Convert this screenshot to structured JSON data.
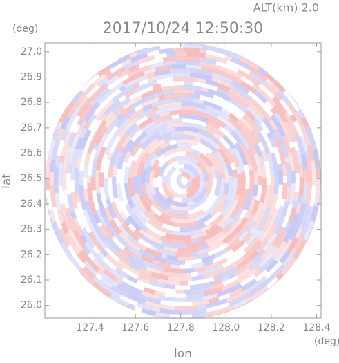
{
  "chart_data": {
    "type": "radar-scan",
    "title": "2017/10/24 12:50:30",
    "subtitle": "ALT(km) 2.0",
    "x_label": "lon",
    "y_label": "lat",
    "x_unit": "(deg)",
    "y_unit": "(deg)",
    "xlim": [
      127.2,
      128.42
    ],
    "ylim": [
      25.95,
      27.035
    ],
    "xticks": [
      127.4,
      127.6,
      127.8,
      {
        "value": 128.0,
        "label": "128.0"
      },
      128.2,
      128.4
    ],
    "yticks": [
      {
        "value": 26.0,
        "label": "26.0"
      },
      26.1,
      26.2,
      26.3,
      26.4,
      26.5,
      26.6,
      26.7,
      26.8,
      26.9,
      {
        "value": 27.0,
        "label": "27.0"
      }
    ]
  }
}
